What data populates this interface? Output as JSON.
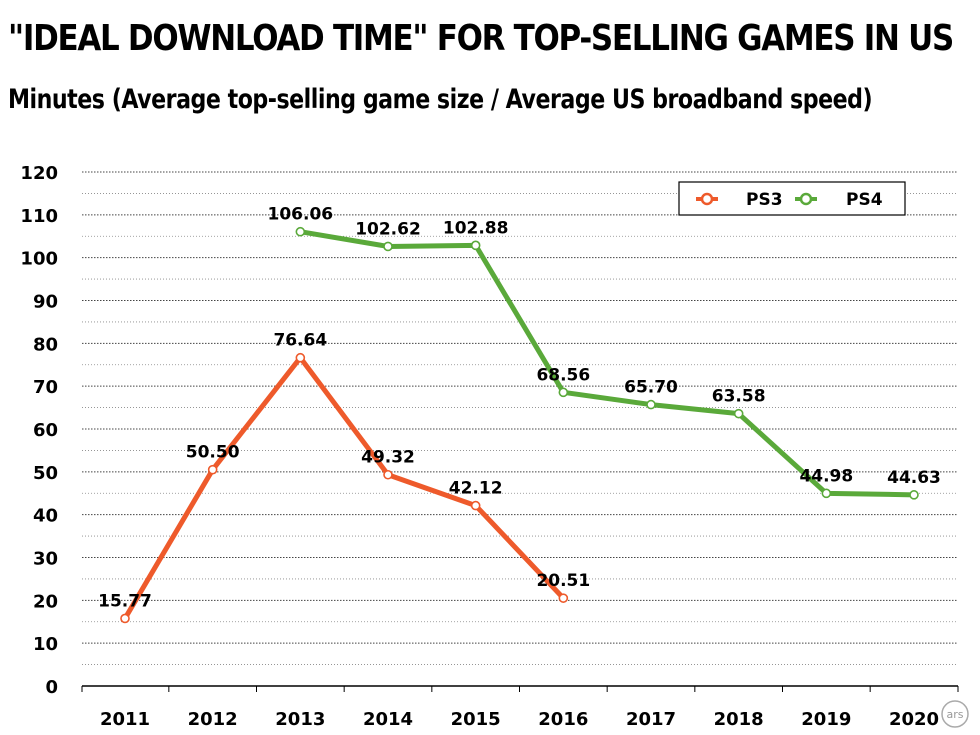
{
  "title": "\"IDEAL DOWNLOAD TIME\" FOR TOP-SELLING GAMES IN US",
  "subtitle": "Minutes (Average top-selling game size / Average US broadband speed)",
  "logo_text": "ars",
  "colors": {
    "ps3": "#ee5a2b",
    "ps4": "#5aa93a",
    "grid": "#555555"
  },
  "chart_data": {
    "type": "line",
    "title": "\"IDEAL DOWNLOAD TIME\" FOR TOP-SELLING GAMES IN US",
    "subtitle": "Minutes (Average top-selling game size / Average US broadband speed)",
    "categories": [
      "2011",
      "2012",
      "2013",
      "2014",
      "2015",
      "2016",
      "2017",
      "2018",
      "2019",
      "2020"
    ],
    "y_ticks": [
      "0",
      "10",
      "20",
      "30",
      "40",
      "50",
      "60",
      "70",
      "80",
      "90",
      "100",
      "110",
      "120"
    ],
    "ylim": [
      0,
      120
    ],
    "grid": true,
    "legend_position": "top-right",
    "series": [
      {
        "name": "PS3",
        "color": "#ee5a2b",
        "values": [
          15.77,
          50.5,
          76.64,
          49.32,
          42.12,
          20.51,
          null,
          null,
          null,
          null
        ],
        "labels": [
          "15.77",
          "50.50",
          "76.64",
          "49.32",
          "42.12",
          "20.51",
          null,
          null,
          null,
          null
        ]
      },
      {
        "name": "PS4",
        "color": "#5aa93a",
        "values": [
          null,
          null,
          106.06,
          102.62,
          102.88,
          68.56,
          65.7,
          63.58,
          44.98,
          44.63
        ],
        "labels": [
          null,
          null,
          "106.06",
          "102.62",
          "102.88",
          "68.56",
          "65.70",
          "63.58",
          "44.98",
          "44.63"
        ]
      }
    ]
  }
}
